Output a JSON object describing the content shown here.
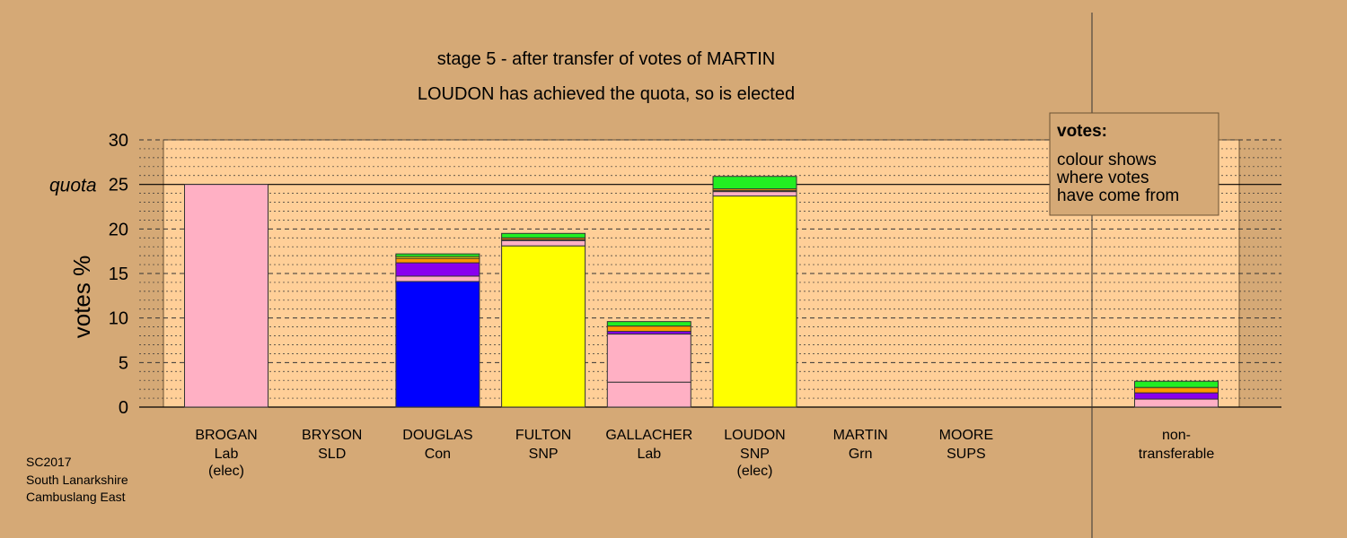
{
  "chart_data": {
    "type": "bar",
    "title": "stage 5 - after transfer of votes of MARTIN",
    "subtitle": "LOUDON has achieved the quota, so is elected",
    "ylabel": "votes %",
    "ylim": [
      0,
      30
    ],
    "yticks": [
      0,
      5,
      10,
      15,
      20,
      25,
      30
    ],
    "quota": 25,
    "quota_label": "quota",
    "grid": true,
    "legend": {
      "placement": "top-right",
      "title": "votes:",
      "lines": [
        "colour shows",
        "where votes",
        "have come from"
      ]
    },
    "source_colors": {
      "Lab": "#ffb0c4",
      "SNP": "#ffff00",
      "Con": "#0000ff",
      "SLD": "#ff9900",
      "Grn": "#22ee22",
      "SUPS": "#8800ee"
    },
    "candidates": [
      {
        "name": "BROGAN",
        "party": "Lab",
        "status": "(elec)",
        "segments": [
          {
            "from": "Lab",
            "value": 25.0
          }
        ]
      },
      {
        "name": "BRYSON",
        "party": "SLD",
        "status": "",
        "segments": []
      },
      {
        "name": "DOUGLAS",
        "party": "Con",
        "status": "",
        "segments": [
          {
            "from": "Con",
            "value": 14.1
          },
          {
            "from": "Lab",
            "value": 0.6
          },
          {
            "from": "SUPS",
            "value": 1.5
          },
          {
            "from": "SLD",
            "value": 0.5
          },
          {
            "from": "SNP",
            "value": 0.2
          },
          {
            "from": "Grn",
            "value": 0.3
          }
        ]
      },
      {
        "name": "FULTON",
        "party": "SNP",
        "status": "",
        "segments": [
          {
            "from": "SNP",
            "value": 18.1
          },
          {
            "from": "Lab",
            "value": 0.6
          },
          {
            "from": "SUPS",
            "value": 0.1
          },
          {
            "from": "SLD",
            "value": 0.2
          },
          {
            "from": "Grn",
            "value": 0.5
          }
        ]
      },
      {
        "name": "GALLACHER",
        "party": "Lab",
        "status": "",
        "segments": [
          {
            "from": "Lab",
            "value": 2.8
          },
          {
            "from": "Lab",
            "value": 5.4
          },
          {
            "from": "SUPS",
            "value": 0.3
          },
          {
            "from": "SLD",
            "value": 0.6
          },
          {
            "from": "Grn",
            "value": 0.5
          }
        ]
      },
      {
        "name": "LOUDON",
        "party": "SNP",
        "status": "(elec)",
        "segments": [
          {
            "from": "SNP",
            "value": 23.7
          },
          {
            "from": "Lab",
            "value": 0.5
          },
          {
            "from": "SUPS",
            "value": 0.1
          },
          {
            "from": "SLD",
            "value": 0.2
          },
          {
            "from": "Grn",
            "value": 1.4
          }
        ]
      },
      {
        "name": "MARTIN",
        "party": "Grn",
        "status": "",
        "segments": []
      },
      {
        "name": "MOORE",
        "party": "SUPS",
        "status": "",
        "segments": []
      }
    ],
    "nontransferable": {
      "line1": "non-",
      "line2": "transferable",
      "segments": [
        {
          "from": "Lab",
          "value": 0.9
        },
        {
          "from": "SUPS",
          "value": 0.7
        },
        {
          "from": "SLD",
          "value": 0.6
        },
        {
          "from": "Grn",
          "value": 0.7
        }
      ]
    }
  },
  "footer": {
    "line1": "SC2017",
    "line2": "South Lanarkshire",
    "line3": "Cambuslang East"
  }
}
